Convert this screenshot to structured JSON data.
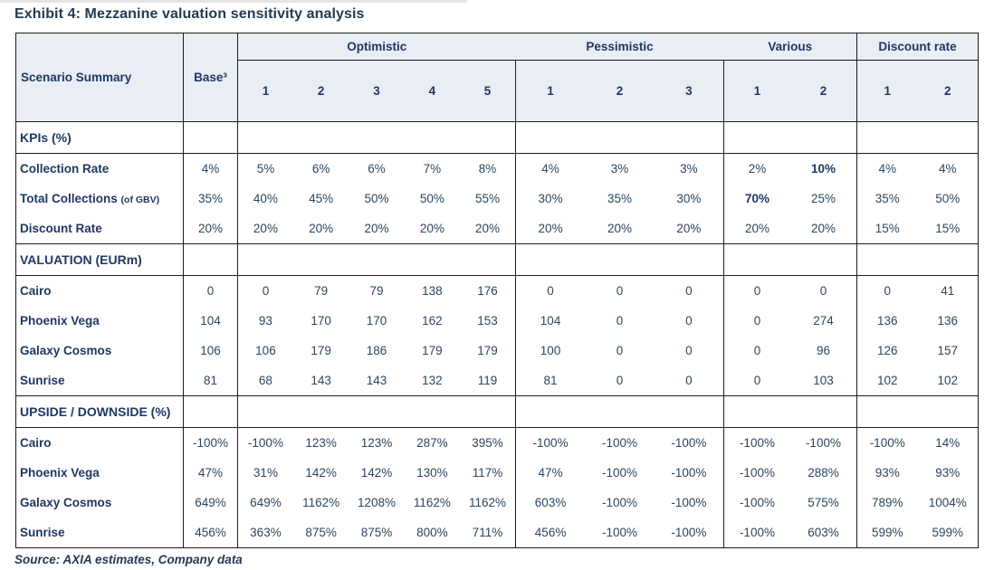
{
  "chart_data": {
    "type": "table",
    "title": "Exhibit 4: Mezzanine valuation sensitivity analysis",
    "source": "Source: AXIA estimates, Company data",
    "corner_header": "Scenario Summary",
    "base_header": "Base³",
    "groups": [
      {
        "label": "Optimistic",
        "cols": [
          "1",
          "2",
          "3",
          "4",
          "5"
        ]
      },
      {
        "label": "Pessimistic",
        "cols": [
          "1",
          "2",
          "3"
        ]
      },
      {
        "label": "Various",
        "cols": [
          "1",
          "2"
        ]
      },
      {
        "label": "Discount rate",
        "cols": [
          "1",
          "2"
        ]
      }
    ],
    "sections": [
      {
        "header": "KPIs (%)",
        "rows": [
          {
            "label": "Collection Rate",
            "base": "4%",
            "values": [
              "5%",
              "6%",
              "6%",
              "7%",
              "8%",
              "4%",
              "3%",
              "3%",
              "2%",
              "10%",
              "4%",
              "4%"
            ],
            "bold": [
              9
            ]
          },
          {
            "label": "Total Collections",
            "label_note": "(of GBV)",
            "base": "35%",
            "values": [
              "40%",
              "45%",
              "50%",
              "50%",
              "55%",
              "30%",
              "35%",
              "30%",
              "70%",
              "25%",
              "35%",
              "50%"
            ],
            "bold": [
              8
            ]
          },
          {
            "label": "Discount Rate",
            "base": "20%",
            "values": [
              "20%",
              "20%",
              "20%",
              "20%",
              "20%",
              "20%",
              "20%",
              "20%",
              "20%",
              "20%",
              "15%",
              "15%"
            ],
            "bold": []
          }
        ]
      },
      {
        "header": "VALUATION (EURm)",
        "rows": [
          {
            "label": "Cairo",
            "base": "0",
            "values": [
              "0",
              "79",
              "79",
              "138",
              "176",
              "0",
              "0",
              "0",
              "0",
              "0",
              "0",
              "41"
            ],
            "bold": []
          },
          {
            "label": "Phoenix Vega",
            "base": "104",
            "values": [
              "93",
              "170",
              "170",
              "162",
              "153",
              "104",
              "0",
              "0",
              "0",
              "274",
              "136",
              "136"
            ],
            "bold": []
          },
          {
            "label": "Galaxy Cosmos",
            "base": "106",
            "values": [
              "106",
              "179",
              "186",
              "179",
              "179",
              "100",
              "0",
              "0",
              "0",
              "96",
              "126",
              "157"
            ],
            "bold": []
          },
          {
            "label": "Sunrise",
            "base": "81",
            "values": [
              "68",
              "143",
              "143",
              "132",
              "119",
              "81",
              "0",
              "0",
              "0",
              "103",
              "102",
              "102"
            ],
            "bold": []
          }
        ]
      },
      {
        "header": "UPSIDE / DOWNSIDE (%)",
        "rows": [
          {
            "label": "Cairo",
            "base": "-100%",
            "values": [
              "-100%",
              "123%",
              "123%",
              "287%",
              "395%",
              "-100%",
              "-100%",
              "-100%",
              "-100%",
              "-100%",
              "-100%",
              "14%"
            ],
            "bold": []
          },
          {
            "label": "Phoenix Vega",
            "base": "47%",
            "values": [
              "31%",
              "142%",
              "142%",
              "130%",
              "117%",
              "47%",
              "-100%",
              "-100%",
              "-100%",
              "288%",
              "93%",
              "93%"
            ],
            "bold": []
          },
          {
            "label": "Galaxy Cosmos",
            "base": "649%",
            "values": [
              "649%",
              "1162%",
              "1208%",
              "1162%",
              "1162%",
              "603%",
              "-100%",
              "-100%",
              "-100%",
              "575%",
              "789%",
              "1004%"
            ],
            "bold": []
          },
          {
            "label": "Sunrise",
            "base": "456%",
            "values": [
              "363%",
              "875%",
              "875%",
              "800%",
              "711%",
              "456%",
              "-100%",
              "-100%",
              "-100%",
              "603%",
              "599%",
              "599%"
            ],
            "bold": []
          }
        ]
      }
    ],
    "colors": {
      "header_bg": "#e9edf4",
      "heading_text": "#1f3864",
      "title_text": "#243a52",
      "value_text": "#2d4660",
      "border": "#1c1c1c"
    }
  }
}
